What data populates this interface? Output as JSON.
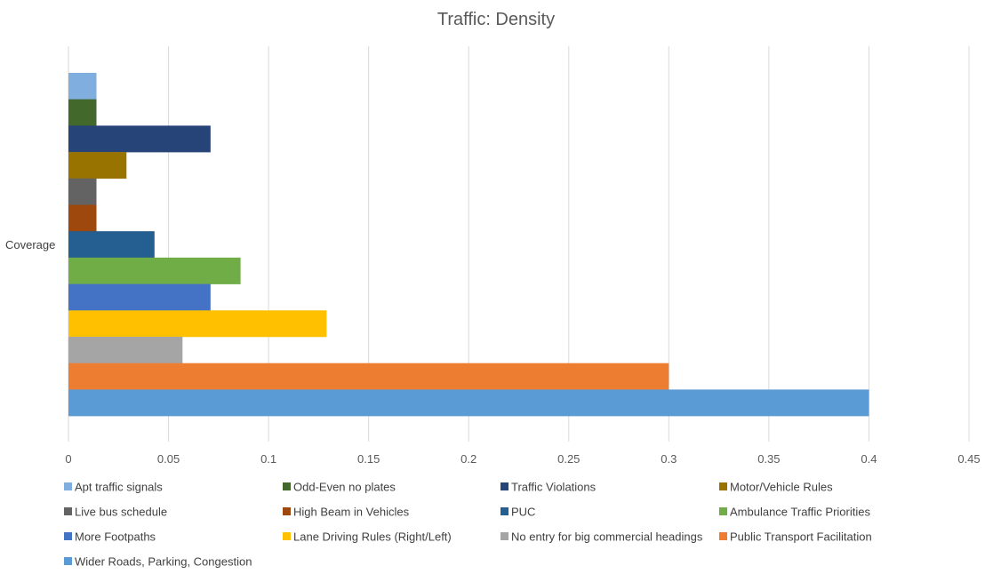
{
  "chart_data": {
    "type": "bar",
    "orientation": "horizontal",
    "title": "Traffic: Density",
    "categories": [
      "Coverage"
    ],
    "xlim": [
      0,
      0.45
    ],
    "xticks": [
      "0",
      "0.05",
      "0.1",
      "0.15",
      "0.2",
      "0.25",
      "0.3",
      "0.35",
      "0.4",
      "0.45"
    ],
    "grid": true,
    "legend_position": "bottom",
    "series": [
      {
        "name": "Apt traffic signals",
        "values": [
          0.014
        ],
        "color": "#7FAEDF"
      },
      {
        "name": "Odd-Even no plates",
        "values": [
          0.014
        ],
        "color": "#43682B"
      },
      {
        "name": "Traffic Violations",
        "values": [
          0.071
        ],
        "color": "#264478"
      },
      {
        "name": "Motor/Vehicle Rules",
        "values": [
          0.029
        ],
        "color": "#997300"
      },
      {
        "name": "Live bus schedule",
        "values": [
          0.014
        ],
        "color": "#636363"
      },
      {
        "name": "High Beam in Vehicles",
        "values": [
          0.014
        ],
        "color": "#9E480E"
      },
      {
        "name": "PUC",
        "values": [
          0.043
        ],
        "color": "#255E91"
      },
      {
        "name": "Ambulance Traffic Priorities",
        "values": [
          0.086
        ],
        "color": "#70AD47"
      },
      {
        "name": "More Footpaths",
        "values": [
          0.071
        ],
        "color": "#4472C4"
      },
      {
        "name": "Lane Driving Rules (Right/Left)",
        "values": [
          0.129
        ],
        "color": "#FFC000"
      },
      {
        "name": "No entry for big commercial headings",
        "values": [
          0.057
        ],
        "color": "#A5A5A5"
      },
      {
        "name": "Public Transport Facilitation",
        "values": [
          0.3
        ],
        "color": "#ED7D31"
      },
      {
        "name": "Wider Roads, Parking, Congestion",
        "values": [
          0.4
        ],
        "color": "#5B9BD5"
      }
    ]
  }
}
